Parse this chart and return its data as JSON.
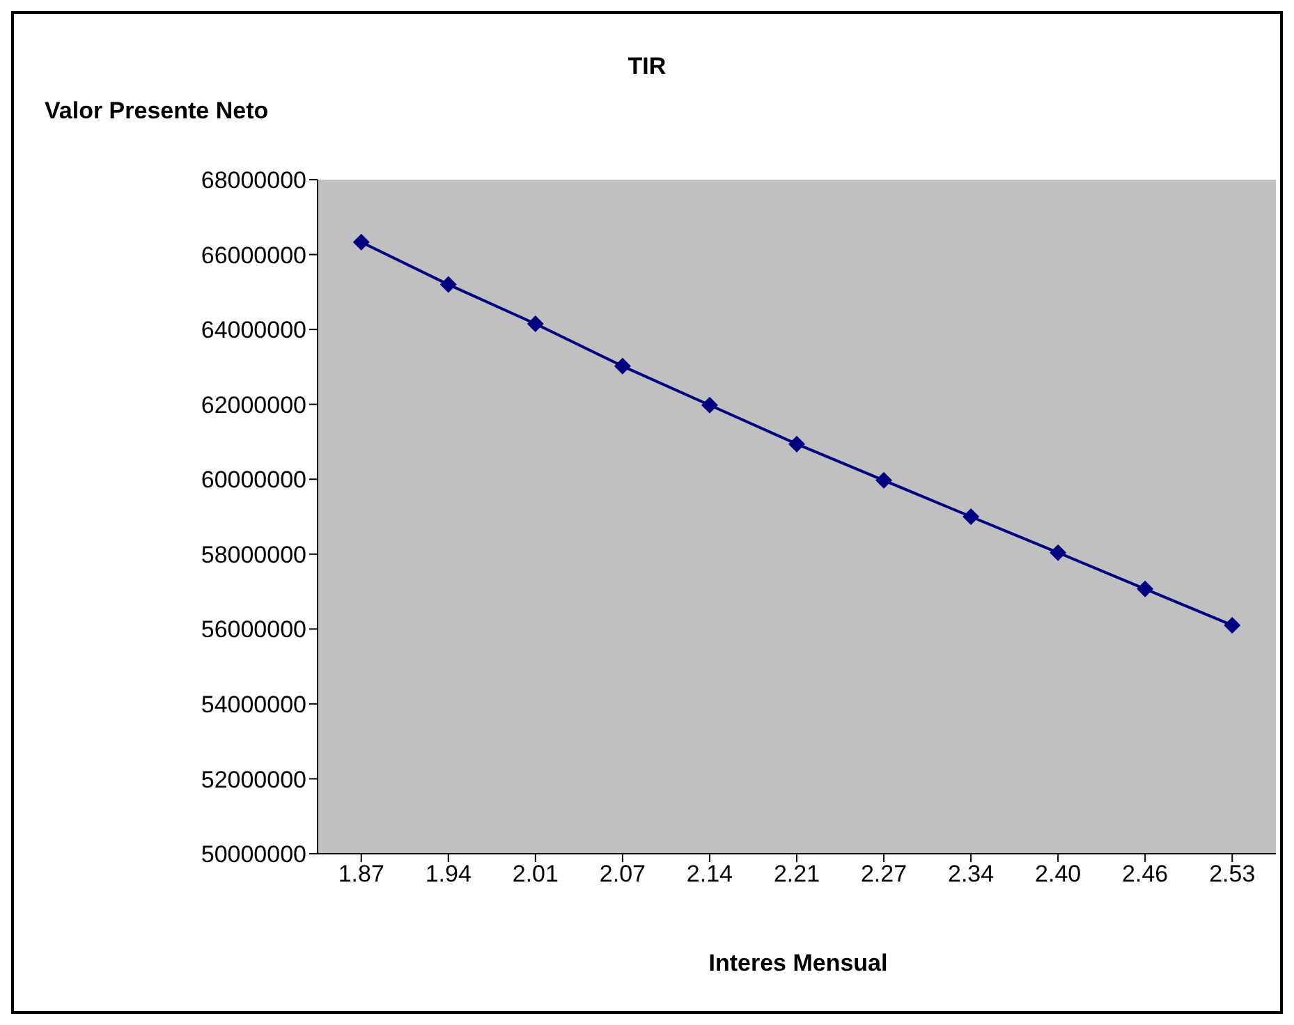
{
  "chart_data": {
    "type": "line",
    "title": "TIR",
    "ylabel": "Valor Presente Neto",
    "xlabel": "Interes Mensual",
    "categories": [
      "1.87",
      "1.94",
      "2.01",
      "2.07",
      "2.14",
      "2.21",
      "2.27",
      "2.34",
      "2.40",
      "2.46",
      "2.53"
    ],
    "series": [
      {
        "color": "#000080",
        "values": [
          66330000,
          65200000,
          64150000,
          63020000,
          61980000,
          60940000,
          59970000,
          59000000,
          58040000,
          57070000,
          56100000
        ]
      }
    ],
    "ylim": [
      50000000,
      68000000
    ],
    "yticks": [
      50000000,
      52000000,
      54000000,
      56000000,
      58000000,
      60000000,
      62000000,
      64000000,
      66000000,
      68000000
    ],
    "grid": false,
    "marker": "diamond",
    "line_style": "solid"
  }
}
